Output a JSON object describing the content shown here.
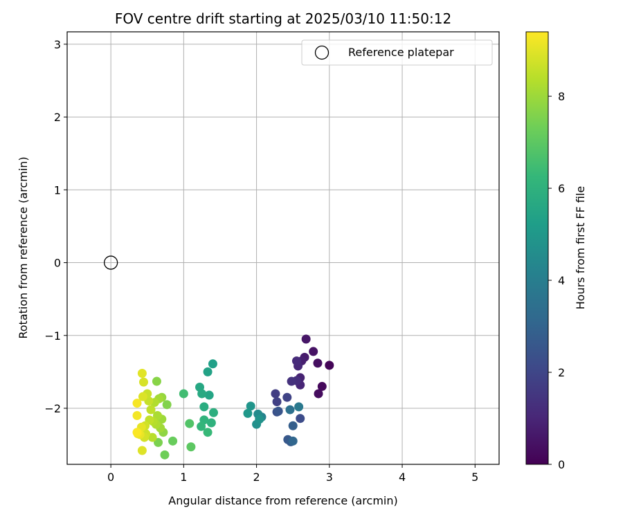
{
  "chart_data": {
    "type": "scatter",
    "title": "FOV centre drift starting at 2025/03/10 11:50:12",
    "xlabel": "Angular distance from reference (arcmin)",
    "ylabel": "Rotation from reference (arcmin)",
    "xlim": [
      -0.6,
      5.33
    ],
    "ylim": [
      -2.77,
      3.17
    ],
    "xticks": [
      0,
      1,
      2,
      3,
      4,
      5
    ],
    "yticks": [
      -2,
      -1,
      0,
      1,
      2,
      3
    ],
    "xtick_labels": [
      "0",
      "1",
      "2",
      "3",
      "4",
      "5"
    ],
    "ytick_labels": [
      "−2",
      "−1",
      "0",
      "1",
      "2",
      "3"
    ],
    "grid": true,
    "legend": {
      "position": "top-right",
      "entries": [
        "Reference platepar"
      ]
    },
    "reference_point": {
      "x": 0,
      "y": 0,
      "label": "Reference platepar"
    },
    "colorbar": {
      "label": "Hours from first FF file",
      "range": [
        0,
        9.4
      ],
      "ticks": [
        0,
        2,
        4,
        6,
        8
      ],
      "tick_labels": [
        "0",
        "2",
        "4",
        "6",
        "8"
      ],
      "colormap": "viridis"
    },
    "colormap_stops": [
      "#440154",
      "#482878",
      "#3e4989",
      "#31688e",
      "#26828e",
      "#1f9e89",
      "#35b779",
      "#6ece58",
      "#b5de2b",
      "#fde725"
    ],
    "points": [
      {
        "x": 3.0,
        "y": -1.41,
        "t": 0.1
      },
      {
        "x": 2.9,
        "y": -1.7,
        "t": 0.2
      },
      {
        "x": 2.85,
        "y": -1.8,
        "t": 0.3
      },
      {
        "x": 2.84,
        "y": -1.38,
        "t": 0.35
      },
      {
        "x": 2.78,
        "y": -1.22,
        "t": 0.45
      },
      {
        "x": 2.68,
        "y": -1.05,
        "t": 0.55
      },
      {
        "x": 2.66,
        "y": -1.3,
        "t": 0.7
      },
      {
        "x": 2.62,
        "y": -1.35,
        "t": 0.8
      },
      {
        "x": 2.6,
        "y": -1.58,
        "t": 0.9
      },
      {
        "x": 2.6,
        "y": -1.68,
        "t": 1.0
      },
      {
        "x": 2.57,
        "y": -1.42,
        "t": 1.05
      },
      {
        "x": 2.55,
        "y": -1.35,
        "t": 1.15
      },
      {
        "x": 2.55,
        "y": -1.62,
        "t": 1.25
      },
      {
        "x": 2.48,
        "y": -1.63,
        "t": 1.35
      },
      {
        "x": 2.26,
        "y": -1.8,
        "t": 1.7
      },
      {
        "x": 2.28,
        "y": -1.91,
        "t": 1.8
      },
      {
        "x": 2.42,
        "y": -1.85,
        "t": 1.9
      },
      {
        "x": 2.6,
        "y": -2.14,
        "t": 2.2
      },
      {
        "x": 2.28,
        "y": -2.05,
        "t": 2.3
      },
      {
        "x": 2.3,
        "y": -2.04,
        "t": 2.5
      },
      {
        "x": 2.43,
        "y": -2.43,
        "t": 2.6
      },
      {
        "x": 2.47,
        "y": -2.46,
        "t": 2.7
      },
      {
        "x": 2.5,
        "y": -2.24,
        "t": 2.8
      },
      {
        "x": 2.5,
        "y": -2.45,
        "t": 3.1
      },
      {
        "x": 2.46,
        "y": -2.02,
        "t": 3.5
      },
      {
        "x": 2.58,
        "y": -1.98,
        "t": 3.8
      },
      {
        "x": 2.07,
        "y": -2.12,
        "t": 4.2
      },
      {
        "x": 2.02,
        "y": -2.08,
        "t": 4.5
      },
      {
        "x": 2.0,
        "y": -2.22,
        "t": 4.7
      },
      {
        "x": 1.92,
        "y": -1.97,
        "t": 4.9
      },
      {
        "x": 1.88,
        "y": -2.07,
        "t": 5.0
      },
      {
        "x": 2.04,
        "y": -2.15,
        "t": 4.8
      },
      {
        "x": 1.4,
        "y": -1.39,
        "t": 5.3
      },
      {
        "x": 1.33,
        "y": -1.5,
        "t": 5.4
      },
      {
        "x": 1.35,
        "y": -1.82,
        "t": 5.5
      },
      {
        "x": 1.22,
        "y": -1.71,
        "t": 5.6
      },
      {
        "x": 1.25,
        "y": -1.8,
        "t": 5.7
      },
      {
        "x": 1.28,
        "y": -1.98,
        "t": 5.8
      },
      {
        "x": 1.41,
        "y": -2.06,
        "t": 5.9
      },
      {
        "x": 1.38,
        "y": -2.2,
        "t": 6.0
      },
      {
        "x": 1.28,
        "y": -2.16,
        "t": 6.1
      },
      {
        "x": 1.24,
        "y": -2.25,
        "t": 6.2
      },
      {
        "x": 1.33,
        "y": -2.33,
        "t": 6.3
      },
      {
        "x": 1.0,
        "y": -1.8,
        "t": 6.5
      },
      {
        "x": 1.08,
        "y": -2.21,
        "t": 6.8
      },
      {
        "x": 1.1,
        "y": -2.53,
        "t": 7.0
      },
      {
        "x": 0.85,
        "y": -2.45,
        "t": 7.2
      },
      {
        "x": 0.74,
        "y": -2.64,
        "t": 7.3
      },
      {
        "x": 0.65,
        "y": -2.47,
        "t": 7.5
      },
      {
        "x": 0.77,
        "y": -1.95,
        "t": 7.6
      },
      {
        "x": 0.63,
        "y": -1.63,
        "t": 7.7
      },
      {
        "x": 0.72,
        "y": -2.33,
        "t": 7.8
      },
      {
        "x": 0.7,
        "y": -1.85,
        "t": 7.9
      },
      {
        "x": 0.7,
        "y": -2.15,
        "t": 8.0
      },
      {
        "x": 0.68,
        "y": -2.27,
        "t": 8.05
      },
      {
        "x": 0.66,
        "y": -1.87,
        "t": 8.1
      },
      {
        "x": 0.64,
        "y": -2.1,
        "t": 8.2
      },
      {
        "x": 0.62,
        "y": -2.22,
        "t": 8.25
      },
      {
        "x": 0.6,
        "y": -1.92,
        "t": 8.3
      },
      {
        "x": 0.58,
        "y": -2.18,
        "t": 8.35
      },
      {
        "x": 0.57,
        "y": -2.4,
        "t": 8.4
      },
      {
        "x": 0.55,
        "y": -2.02,
        "t": 8.5
      },
      {
        "x": 0.53,
        "y": -2.16,
        "t": 8.55
      },
      {
        "x": 0.52,
        "y": -1.9,
        "t": 8.6
      },
      {
        "x": 0.5,
        "y": -1.8,
        "t": 8.65
      },
      {
        "x": 0.48,
        "y": -2.35,
        "t": 8.7
      },
      {
        "x": 0.47,
        "y": -2.24,
        "t": 8.75
      },
      {
        "x": 0.46,
        "y": -2.4,
        "t": 8.8
      },
      {
        "x": 0.45,
        "y": -1.64,
        "t": 8.85
      },
      {
        "x": 0.44,
        "y": -1.84,
        "t": 8.9
      },
      {
        "x": 0.43,
        "y": -2.58,
        "t": 8.95
      },
      {
        "x": 0.43,
        "y": -1.52,
        "t": 9.0
      },
      {
        "x": 0.42,
        "y": -2.26,
        "t": 9.05
      },
      {
        "x": 0.4,
        "y": -2.36,
        "t": 9.1
      },
      {
        "x": 0.38,
        "y": -2.34,
        "t": 9.15
      },
      {
        "x": 0.37,
        "y": -2.35,
        "t": 9.2
      },
      {
        "x": 0.36,
        "y": -2.1,
        "t": 9.25
      },
      {
        "x": 0.36,
        "y": -1.93,
        "t": 9.3
      },
      {
        "x": 0.36,
        "y": -2.33,
        "t": 9.35
      }
    ]
  }
}
